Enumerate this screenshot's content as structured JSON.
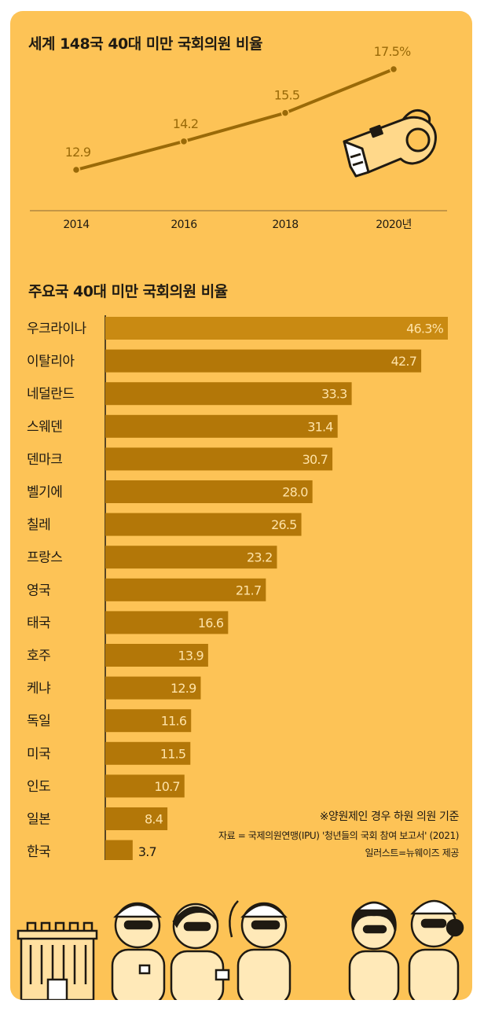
{
  "chart_data": [
    {
      "type": "line",
      "title": "세계 148국 40대 미만 국회의원 비율",
      "x": [
        "2014",
        "2016",
        "2018",
        "2020년"
      ],
      "values": [
        12.9,
        14.2,
        15.5,
        17.5
      ],
      "value_labels": [
        "12.9",
        "14.2",
        "15.5",
        "17.5%"
      ],
      "color": "#9A6A08"
    },
    {
      "type": "bar",
      "orientation": "horizontal",
      "title": "주요국 40대 미만 국회의원 비율",
      "categories": [
        "우크라이나",
        "이탈리아",
        "네덜란드",
        "스웨덴",
        "덴마크",
        "벨기에",
        "칠레",
        "프랑스",
        "영국",
        "태국",
        "호주",
        "케냐",
        "독일",
        "미국",
        "인도",
        "일본",
        "한국"
      ],
      "values": [
        46.3,
        42.7,
        33.3,
        31.4,
        30.7,
        28.0,
        26.5,
        23.2,
        21.7,
        16.6,
        13.9,
        12.9,
        11.6,
        11.5,
        10.7,
        8.4,
        3.7
      ],
      "value_labels": [
        "46.3%",
        "42.7",
        "33.3",
        "31.4",
        "30.7",
        "28.0",
        "26.5",
        "23.2",
        "21.7",
        "16.6",
        "13.9",
        "12.9",
        "11.6",
        "11.5",
        "10.7",
        "8.4",
        "3.7"
      ],
      "bar_color": "#B37708",
      "highlight_color": "#C98A12"
    }
  ],
  "notes": {
    "note1": "※양원제인 경우 하원 의원 기준",
    "note2": "자료 = 국제의원연맹(IPU) '청년들의 국회 참여 보고서' (2021)",
    "note3": "일러스트=뉴웨이즈 제공"
  },
  "colors": {
    "background": "#FDC356",
    "line": "#9A6A08",
    "text": "#1f1a12",
    "value_text": "#FFE3A8"
  },
  "icons": [
    "whistle-icon",
    "parliament-building-icon",
    "cartoon-people-illustration"
  ]
}
